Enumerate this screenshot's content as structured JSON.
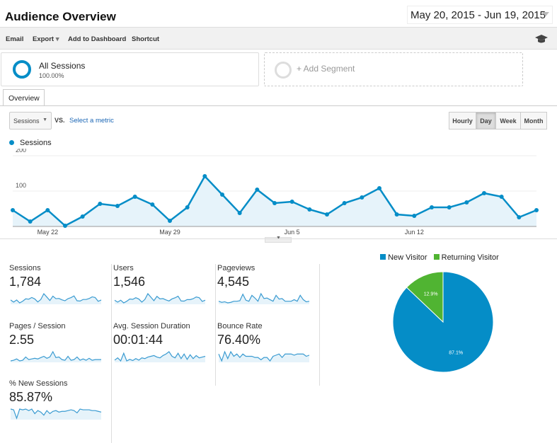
{
  "header": {
    "title": "Audience Overview",
    "date_range": "May 20, 2015 - Jun 19, 2015"
  },
  "toolbar": {
    "email": "Email",
    "export": "Export",
    "add_to_dashboard": "Add to Dashboard",
    "shortcut": "Shortcut",
    "icon": "graduation-cap-icon"
  },
  "segments": {
    "all_sessions": "All Sessions",
    "all_sessions_pct": "100.00%",
    "add_segment": "+ Add Segment"
  },
  "tabs": {
    "overview": "Overview"
  },
  "controls": {
    "metric": "Sessions",
    "vs": "VS.",
    "select_metric": "Select a metric",
    "granularity": [
      "Hourly",
      "Day",
      "Week",
      "Month"
    ],
    "selected": "Day"
  },
  "chart_data": {
    "type": "area",
    "series": [
      {
        "name": "Sessions",
        "values": [
          46,
          14,
          46,
          2,
          28,
          64,
          58,
          84,
          62,
          16,
          54,
          142,
          90,
          38,
          104,
          66,
          70,
          48,
          34,
          66,
          82,
          108,
          34,
          30,
          54,
          54,
          68,
          94,
          84,
          26,
          46
        ]
      }
    ],
    "x_tick_labels": [
      "May 22",
      "May 29",
      "Jun 5",
      "Jun 12"
    ],
    "x_tick_indices": [
      2,
      9,
      16,
      23
    ],
    "y_tick_labels": [
      "100",
      "200"
    ],
    "ylim": [
      0,
      200
    ],
    "color": "#058dc7",
    "legend": "top-left",
    "grid": true
  },
  "metrics": [
    {
      "label": "Sessions",
      "value": "1,784",
      "spark": [
        46,
        14,
        46,
        2,
        28,
        64,
        58,
        84,
        62,
        16,
        54,
        142,
        90,
        38,
        104,
        66,
        70,
        48,
        34,
        66,
        82,
        108,
        34,
        30,
        54,
        54,
        68,
        94,
        84,
        26,
        46
      ]
    },
    {
      "label": "Users",
      "value": "1,546",
      "spark": [
        40,
        14,
        40,
        4,
        26,
        56,
        52,
        74,
        56,
        14,
        50,
        128,
        80,
        34,
        92,
        58,
        62,
        44,
        30,
        58,
        72,
        94,
        30,
        28,
        48,
        48,
        60,
        84,
        74,
        24,
        40
      ]
    },
    {
      "label": "Pageviews",
      "value": "4,545",
      "spark": [
        60,
        40,
        50,
        30,
        40,
        60,
        60,
        70,
        190,
        80,
        60,
        170,
        120,
        60,
        200,
        110,
        120,
        90,
        60,
        170,
        100,
        110,
        60,
        60,
        60,
        90,
        60,
        170,
        90,
        50,
        60
      ]
    },
    {
      "label": "Pages / Session",
      "value": "2.55",
      "spark": [
        2.2,
        2.3,
        2.5,
        2.2,
        2.3,
        2.8,
        2.4,
        2.5,
        2.6,
        2.5,
        2.7,
        2.9,
        2.6,
        2.8,
        3.6,
        2.7,
        2.8,
        2.4,
        2.3,
        2.9,
        2.3,
        2.4,
        2.8,
        2.3,
        2.5,
        2.3,
        2.6,
        2.3,
        2.4,
        2.4,
        2.4
      ]
    },
    {
      "label": "Avg. Session Duration",
      "value": "00:01:44",
      "spark": [
        60,
        90,
        50,
        150,
        50,
        70,
        55,
        80,
        60,
        90,
        80,
        100,
        110,
        120,
        100,
        90,
        120,
        140,
        170,
        110,
        90,
        150,
        80,
        140,
        70,
        130,
        80,
        120,
        90,
        100,
        110
      ]
    },
    {
      "label": "Bounce Rate",
      "value": "76.40%",
      "spark": [
        80,
        74,
        82,
        76,
        82,
        78,
        80,
        77,
        80,
        78,
        78,
        78,
        77,
        77,
        75,
        77,
        77,
        74,
        78,
        79,
        80,
        77,
        80,
        80,
        80,
        79,
        80,
        80,
        80,
        78,
        79
      ]
    },
    {
      "label": "% New Sessions",
      "value": "85.87%",
      "spark": [
        88,
        87,
        76,
        88,
        87,
        88,
        86,
        88,
        82,
        86,
        84,
        80,
        86,
        82,
        85,
        86,
        84,
        85,
        85,
        86,
        87,
        86,
        83,
        88,
        87,
        87,
        87,
        86,
        86,
        85,
        84
      ]
    }
  ],
  "pie": {
    "legend": [
      "New Visitor",
      "Returning Visitor"
    ],
    "values": [
      87.1,
      12.9
    ],
    "labels": [
      "87.1%",
      "12.9%"
    ],
    "colors": [
      "#058dc7",
      "#50b432"
    ]
  }
}
